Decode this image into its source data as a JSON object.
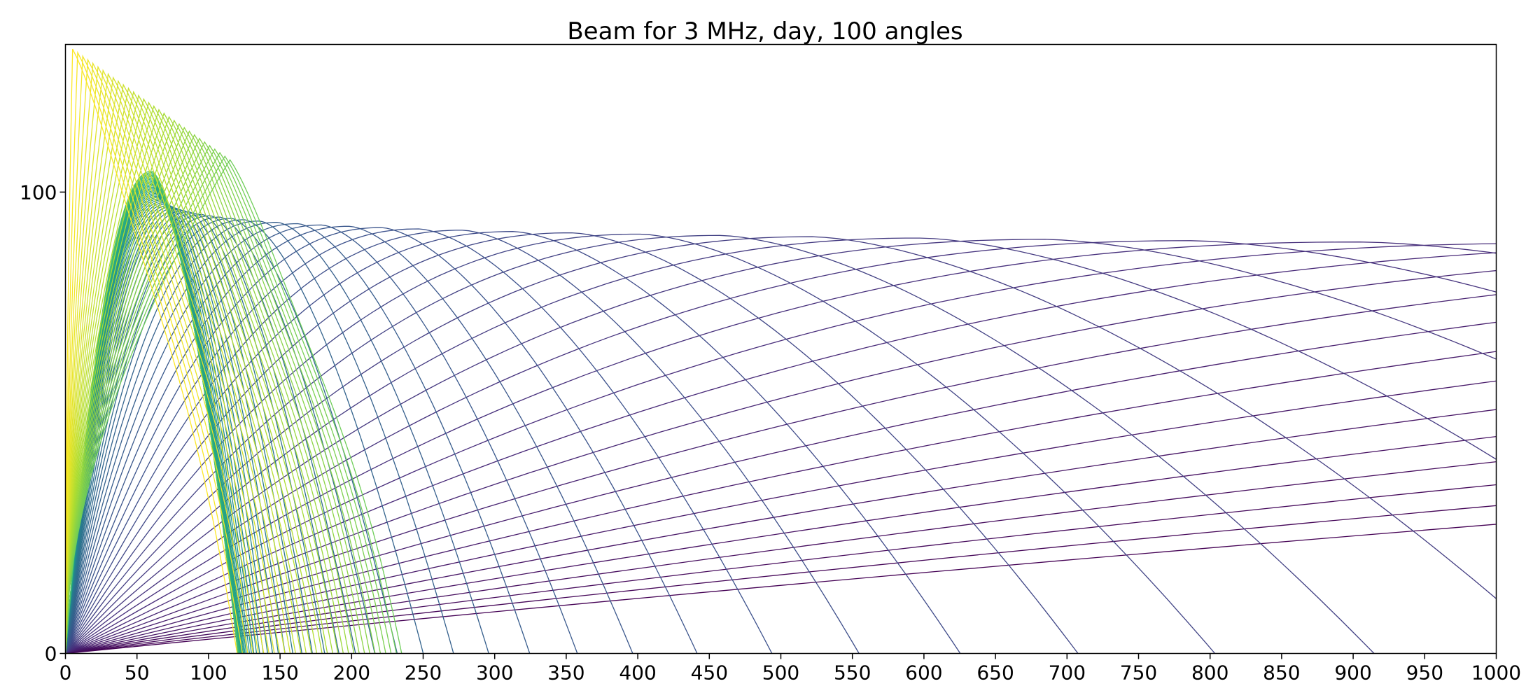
{
  "chart_data": {
    "type": "line",
    "title": "Beam for 3 MHz, day, 100 angles",
    "xlabel": "",
    "ylabel": "",
    "xlim": [
      0,
      1000
    ],
    "ylim": [
      0,
      132
    ],
    "xticks": [
      0,
      50,
      100,
      150,
      200,
      250,
      300,
      350,
      400,
      450,
      500,
      550,
      600,
      650,
      700,
      750,
      800,
      850,
      900,
      950,
      1000
    ],
    "yticks": [
      0,
      100
    ],
    "grid": false,
    "legend": "none",
    "colormap": "viridis",
    "series_count": 100,
    "trapped_rays": {
      "description_of_data": "rays that exceed the caustic and return near ~100 km in apex then fall back",
      "start_range": [
        2,
        115
      ],
      "apex_height_range": [
        107,
        131
      ],
      "end_range": [
        120,
        235
      ]
    },
    "escaping_rays_sample": [
      {
        "apex_x": 945,
        "apex_y": 86
      },
      {
        "apex_x": 808,
        "apex_y": 86.5
      },
      {
        "apex_x": 705,
        "apex_y": 87
      },
      {
        "apex_x": 630,
        "apex_y": 87.5
      },
      {
        "apex_x": 568,
        "apex_y": 87.5
      },
      {
        "apex_x": 518,
        "apex_y": 88
      },
      {
        "apex_x": 475,
        "apex_y": 88
      },
      {
        "apex_x": 440,
        "apex_y": 88.5
      },
      {
        "apex_x": 408,
        "apex_y": 89
      },
      {
        "apex_x": 380,
        "apex_y": 89
      },
      {
        "apex_x": 355,
        "apex_y": 89.5
      },
      {
        "apex_x": 333,
        "apex_y": 89.5
      },
      {
        "apex_x": 312,
        "apex_y": 90
      },
      {
        "apex_x": 293,
        "apex_y": 90
      },
      {
        "apex_x": 276,
        "apex_y": 90.5
      }
    ],
    "low_angle_rays_at_x1000": [
      16,
      32,
      48,
      64,
      80,
      94
    ]
  }
}
